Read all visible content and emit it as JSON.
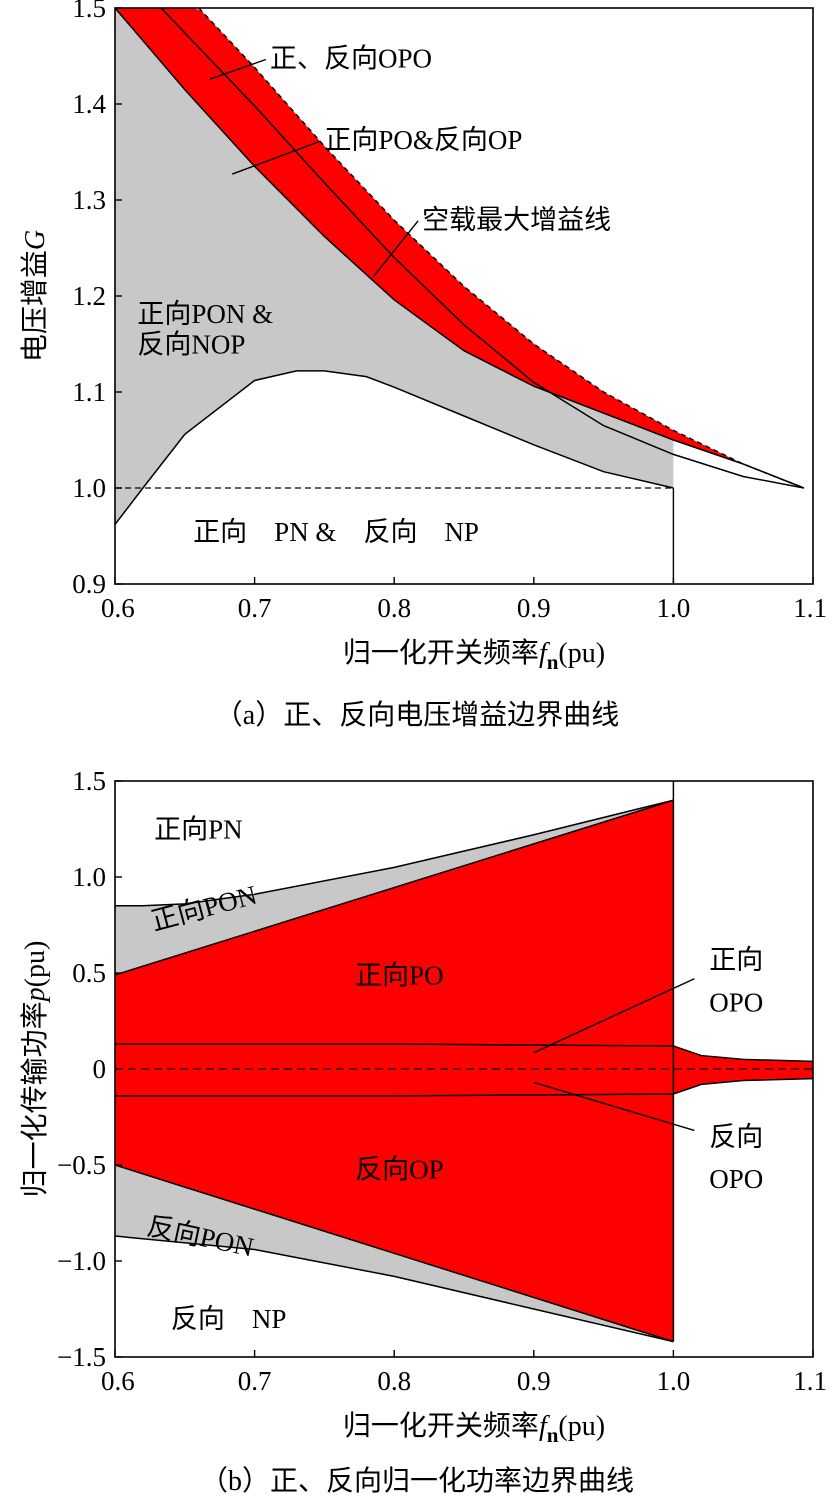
{
  "colors": {
    "red": "#ff0000",
    "gray": "#c8c8c8",
    "line": "#000000",
    "background": "#ffffff"
  },
  "chart_data": [
    {
      "type": "area",
      "caption": "（a）正、反向电压增益边界曲线",
      "xlabel_main": "归一化开关频率",
      "xlabel_var": "f",
      "xlabel_sub": "n",
      "xlabel_unit": "(pu)",
      "ylabel_main": "电压增益",
      "ylabel_var": "G",
      "xlim": [
        0.6,
        1.1
      ],
      "ylim": [
        0.9,
        1.5
      ],
      "xticks": [
        "0.6",
        "0.7",
        "0.8",
        "0.9",
        "1.0",
        "1.1"
      ],
      "yticks": [
        "0.9",
        "1.0",
        "1.1",
        "1.2",
        "1.3",
        "1.4",
        "1.5"
      ],
      "grid": false,
      "series": [
        {
          "role": "noload-max-gain",
          "style": "dashed",
          "x": [
            0.66,
            0.7,
            0.75,
            0.8,
            0.85,
            0.9,
            0.95,
            1.0,
            1.05,
            1.0935
          ],
          "y": [
            1.5,
            1.438,
            1.356,
            1.279,
            1.21,
            1.15,
            1.1,
            1.06,
            1.025,
            1.0
          ]
        },
        {
          "role": "opo-inner-boundary",
          "style": "solid",
          "x": [
            0.633,
            0.7,
            0.75,
            0.8,
            0.85,
            0.9,
            0.95,
            1.0,
            1.05,
            1.0935
          ],
          "y": [
            1.5,
            1.398,
            1.318,
            1.24,
            1.17,
            1.11,
            1.065,
            1.035,
            1.012,
            1.0
          ]
        },
        {
          "role": "pon-upper-boundary",
          "style": "solid",
          "x": [
            0.6,
            0.65,
            0.7,
            0.75,
            0.8,
            0.85,
            0.9,
            0.95,
            1.0,
            1.05,
            1.0935
          ],
          "y": [
            1.5,
            1.415,
            1.335,
            1.262,
            1.196,
            1.143,
            1.106,
            1.078,
            1.05,
            1.025,
            1.0
          ]
        },
        {
          "role": "pon-lower-boundary",
          "style": "solid",
          "x": [
            0.6,
            0.62,
            0.65,
            0.7,
            0.73,
            0.75,
            0.78,
            0.8,
            0.85,
            0.9,
            0.95,
            1.0
          ],
          "y": [
            0.962,
            1.0,
            1.056,
            1.112,
            1.122,
            1.122,
            1.116,
            1.105,
            1.075,
            1.045,
            1.017,
            1.0
          ]
        }
      ],
      "reference_lines": [
        {
          "type": "h",
          "y": 1.0,
          "x_from": 0.6,
          "x_to": 1.0,
          "style": "dashed"
        },
        {
          "type": "v",
          "x": 1.0,
          "y_from": 0.9,
          "y_to": 1.0,
          "style": "solid"
        }
      ],
      "annotations": [
        {
          "lines": [
            "正、反向OPO"
          ],
          "x": 0.711,
          "y": 1.438,
          "pointer_to": [
            0.668,
            1.426
          ]
        },
        {
          "lines": [
            "正向PO&反向OP"
          ],
          "x": 0.75,
          "y": 1.353,
          "pointer_to": [
            0.684,
            1.327
          ]
        },
        {
          "lines": [
            "空载最大增益线"
          ],
          "x": 0.82,
          "y": 1.27,
          "pointer_to": [
            0.785,
            1.22
          ]
        },
        {
          "lines": [
            "正向PON &",
            "反向NOP"
          ],
          "x": 0.616,
          "y": 1.172,
          "line_height": 0.032
        },
        {
          "lines": [
            "正向    PN &    反向    NP"
          ],
          "x": 0.656,
          "y": 0.945
        }
      ]
    },
    {
      "type": "area",
      "caption": "（b）正、反向归一化功率边界曲线",
      "xlabel_main": "归一化开关频率",
      "xlabel_var": "f",
      "xlabel_sub": "n",
      "xlabel_unit": "(pu)",
      "ylabel_main": "归一化传输功率",
      "ylabel_var": "p",
      "ylabel_unit": "(pu)",
      "xlim": [
        0.6,
        1.1
      ],
      "ylim": [
        -1.5,
        1.5
      ],
      "xticks": [
        "0.6",
        "0.7",
        "0.8",
        "0.9",
        "1.0",
        "1.1"
      ],
      "yticks": [
        "-1.5",
        "-1.0",
        "-0.5",
        "0",
        "0.5",
        "1.0",
        "1.5"
      ],
      "grid": false,
      "series": [
        {
          "role": "forward-pon-upper",
          "x": [
            0.6,
            0.62,
            0.65,
            0.7,
            0.8,
            0.9,
            1.0
          ],
          "y": [
            0.85,
            0.85,
            0.86,
            0.91,
            1.05,
            1.22,
            1.4
          ]
        },
        {
          "role": "forward-po-upper",
          "x": [
            0.6,
            1.0
          ],
          "y": [
            0.49,
            1.4
          ]
        },
        {
          "role": "forward-opo-upper",
          "x": [
            0.6,
            0.8,
            1.0,
            1.02,
            1.05,
            1.1
          ],
          "y": [
            0.13,
            0.13,
            0.12,
            0.07,
            0.05,
            0.04
          ]
        },
        {
          "role": "reverse-opo-lower",
          "x": [
            0.6,
            0.8,
            1.0,
            1.02,
            1.05,
            1.1
          ],
          "y": [
            -0.14,
            -0.14,
            -0.13,
            -0.08,
            -0.06,
            -0.05
          ]
        },
        {
          "role": "reverse-op-lower",
          "x": [
            0.6,
            1.0
          ],
          "y": [
            -0.5,
            -1.42
          ]
        },
        {
          "role": "reverse-pon-lower",
          "x": [
            0.6,
            0.7,
            0.8,
            0.9,
            1.0
          ],
          "y": [
            -0.87,
            -0.94,
            -1.08,
            -1.25,
            -1.42
          ]
        }
      ],
      "reference_lines": [
        {
          "type": "h",
          "y": 0,
          "x_from": 0.6,
          "x_to": 1.1,
          "style": "dashed"
        },
        {
          "type": "v",
          "x": 1.0,
          "y_from": -1.42,
          "y_to": 1.5,
          "style": "solid"
        }
      ],
      "annotations": [
        {
          "lines": [
            "正向PN"
          ],
          "x": 0.628,
          "y": 1.2
        },
        {
          "lines": [
            "正向PON"
          ],
          "x": 0.628,
          "y": 0.72,
          "rotate": -15
        },
        {
          "lines": [
            "正向PO"
          ],
          "x": 0.772,
          "y": 0.44
        },
        {
          "lines": [
            "正向",
            "OPO"
          ],
          "x": 1.0,
          "y": 0.52,
          "line_height": 0.22,
          "align": "center",
          "center_x": 1.045,
          "pointer_from": [
            1.015,
            0.47
          ],
          "pointer_to": [
            0.9,
            0.085
          ]
        },
        {
          "lines": [
            "反向",
            "OPO"
          ],
          "x": 1.0,
          "y": -0.4,
          "line_height": 0.22,
          "align": "center",
          "center_x": 1.045,
          "pointer_from": [
            1.015,
            -0.32
          ],
          "pointer_to": [
            0.9,
            -0.07
          ]
        },
        {
          "lines": [
            "反向OP"
          ],
          "x": 0.772,
          "y": -0.57
        },
        {
          "lines": [
            "反向PON"
          ],
          "x": 0.622,
          "y": -0.86,
          "rotate": 12
        },
        {
          "lines": [
            "反向    NP"
          ],
          "x": 0.64,
          "y": -1.35
        }
      ]
    }
  ]
}
